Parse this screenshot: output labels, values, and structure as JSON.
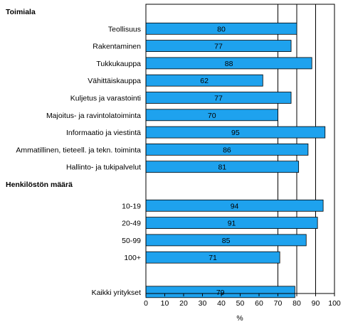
{
  "chart_data": {
    "type": "bar",
    "orientation": "horizontal",
    "groups": [
      {
        "label": "Toimiala",
        "categories": [
          "Teollisuus",
          "Rakentaminen",
          "Tukkukauppa",
          "Vähittäiskauppa",
          "Kuljetus ja varastointi",
          "Majoitus- ja ravintolatoiminta",
          "Informaatio ja viestintä",
          "Ammatillinen, tieteell. ja tekn. toiminta",
          "Hallinto- ja tukipalvelut"
        ],
        "values": [
          80,
          77,
          88,
          62,
          77,
          70,
          95,
          86,
          81
        ]
      },
      {
        "label": "Henkilöstön määrä",
        "categories": [
          "10-19",
          "20-49",
          "50-99",
          "100+"
        ],
        "values": [
          94,
          91,
          85,
          71
        ]
      },
      {
        "label": "",
        "categories": [
          "Kaikki yritykset"
        ],
        "values": [
          79
        ]
      }
    ],
    "xlabel": "%",
    "xlim": [
      0,
      100
    ],
    "xticks": [
      "0",
      "10",
      "20",
      "30",
      "40",
      "50",
      "60",
      "70",
      "80",
      "90",
      "100"
    ],
    "grid": "vertical at 70, 80, 90",
    "bar_color": "#1ea2ee",
    "bar_edge_color": "#000000"
  }
}
